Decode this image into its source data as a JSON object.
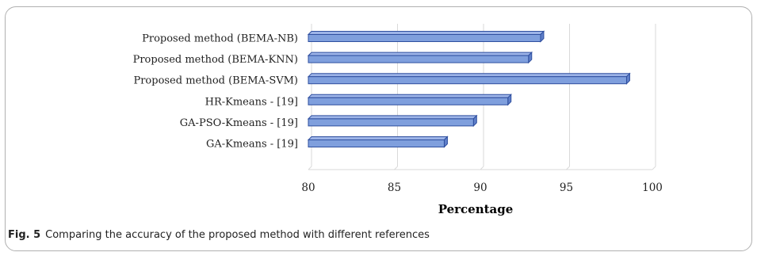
{
  "chart_data": {
    "type": "bar",
    "orientation": "horizontal",
    "categories": [
      "Proposed method (BEMA-NB)",
      "Proposed method (BEMA-KNN)",
      "Proposed method (BEMA-SVM)",
      "HR-Kmeans - [19]",
      "GA-PSO-Kmeans - [19]",
      "GA-Kmeans - [19]"
    ],
    "values": [
      93.5,
      92.8,
      98.5,
      91.6,
      89.6,
      87.9
    ],
    "xlabel": "Percentage",
    "xlim": [
      80,
      100
    ],
    "xticks": [
      "80",
      "85",
      "90",
      "95",
      "100"
    ],
    "grid": true,
    "bar_color": "#7f9fdd",
    "bar_edge_color": "#2f4f9f"
  },
  "caption": {
    "figure_label": "Fig. 5",
    "text": "Comparing the accuracy of the proposed method with different references"
  }
}
